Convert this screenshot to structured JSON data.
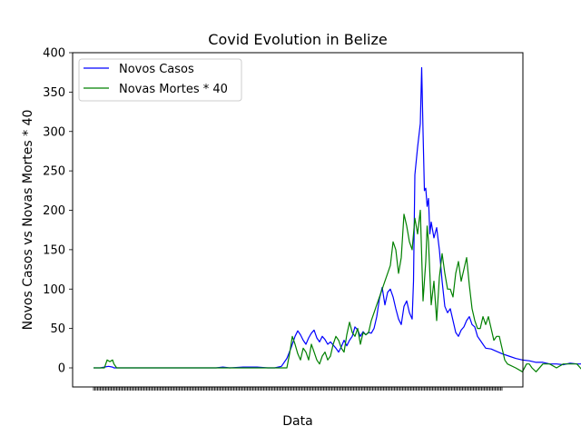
{
  "chart_data": {
    "type": "line",
    "title": "Covid Evolution in Belize",
    "xlabel": "Data",
    "ylabel": "Novos Casos vs Novas Mortes * 40",
    "ylim": [
      -25,
      400
    ],
    "yticks": [
      0,
      50,
      100,
      150,
      200,
      250,
      300,
      350,
      400
    ],
    "x_index_range": [
      0,
      300
    ],
    "grid": false,
    "legend_position": "upper left",
    "series": [
      {
        "name": "Novos Casos",
        "color": "#0000ff",
        "points": [
          [
            0,
            0
          ],
          [
            5,
            0
          ],
          [
            8,
            1
          ],
          [
            11,
            2
          ],
          [
            14,
            1
          ],
          [
            15,
            0
          ],
          [
            20,
            0
          ],
          [
            60,
            0
          ],
          [
            70,
            0
          ],
          [
            80,
            0
          ],
          [
            90,
            0
          ],
          [
            95,
            1
          ],
          [
            100,
            0
          ],
          [
            110,
            1
          ],
          [
            120,
            1
          ],
          [
            128,
            0
          ],
          [
            133,
            0
          ],
          [
            138,
            2
          ],
          [
            142,
            12
          ],
          [
            145,
            25
          ],
          [
            148,
            40
          ],
          [
            150,
            47
          ],
          [
            152,
            42
          ],
          [
            154,
            35
          ],
          [
            156,
            30
          ],
          [
            158,
            38
          ],
          [
            160,
            44
          ],
          [
            162,
            48
          ],
          [
            164,
            38
          ],
          [
            166,
            33
          ],
          [
            168,
            40
          ],
          [
            170,
            36
          ],
          [
            172,
            30
          ],
          [
            174,
            33
          ],
          [
            176,
            29
          ],
          [
            178,
            25
          ],
          [
            180,
            20
          ],
          [
            182,
            27
          ],
          [
            184,
            35
          ],
          [
            186,
            28
          ],
          [
            188,
            35
          ],
          [
            190,
            40
          ],
          [
            192,
            52
          ],
          [
            194,
            48
          ],
          [
            196,
            40
          ],
          [
            198,
            46
          ],
          [
            200,
            42
          ],
          [
            202,
            45
          ],
          [
            204,
            44
          ],
          [
            206,
            50
          ],
          [
            208,
            65
          ],
          [
            210,
            88
          ],
          [
            212,
            102
          ],
          [
            214,
            80
          ],
          [
            216,
            96
          ],
          [
            218,
            100
          ],
          [
            220,
            90
          ],
          [
            222,
            75
          ],
          [
            224,
            62
          ],
          [
            226,
            55
          ],
          [
            228,
            78
          ],
          [
            230,
            85
          ],
          [
            232,
            70
          ],
          [
            234,
            62
          ],
          [
            235,
            110
          ],
          [
            236,
            245
          ],
          [
            238,
            280
          ],
          [
            240,
            310
          ],
          [
            241,
            381
          ],
          [
            242,
            300
          ],
          [
            243,
            225
          ],
          [
            244,
            228
          ],
          [
            245,
            205
          ],
          [
            246,
            215
          ],
          [
            247,
            170
          ],
          [
            248,
            185
          ],
          [
            250,
            165
          ],
          [
            252,
            178
          ],
          [
            254,
            150
          ],
          [
            256,
            110
          ],
          [
            258,
            78
          ],
          [
            260,
            70
          ],
          [
            262,
            75
          ],
          [
            264,
            60
          ],
          [
            266,
            45
          ],
          [
            268,
            40
          ],
          [
            270,
            48
          ],
          [
            272,
            52
          ],
          [
            274,
            60
          ],
          [
            276,
            65
          ],
          [
            278,
            55
          ],
          [
            280,
            52
          ],
          [
            282,
            40
          ],
          [
            284,
            35
          ],
          [
            286,
            30
          ],
          [
            288,
            25
          ],
          [
            292,
            24
          ],
          [
            296,
            21
          ],
          [
            300,
            18
          ],
          [
            305,
            15
          ],
          [
            310,
            12
          ],
          [
            315,
            10
          ],
          [
            320,
            9
          ],
          [
            325,
            7
          ],
          [
            330,
            7
          ],
          [
            335,
            5
          ],
          [
            340,
            5
          ],
          [
            345,
            4
          ],
          [
            350,
            6
          ],
          [
            355,
            5
          ],
          [
            360,
            5
          ],
          [
            365,
            7
          ],
          [
            370,
            5
          ],
          [
            375,
            4
          ],
          [
            380,
            6
          ],
          [
            385,
            7
          ]
        ]
      },
      {
        "name": "Novas Mortes * 40",
        "color": "#008000",
        "points": [
          [
            0,
            0
          ],
          [
            8,
            0
          ],
          [
            10,
            10
          ],
          [
            12,
            8
          ],
          [
            14,
            10
          ],
          [
            15,
            5
          ],
          [
            17,
            0
          ],
          [
            20,
            0
          ],
          [
            60,
            0
          ],
          [
            120,
            0
          ],
          [
            130,
            0
          ],
          [
            138,
            0
          ],
          [
            140,
            0
          ],
          [
            142,
            0
          ],
          [
            144,
            18
          ],
          [
            146,
            40
          ],
          [
            148,
            30
          ],
          [
            150,
            18
          ],
          [
            152,
            10
          ],
          [
            154,
            25
          ],
          [
            156,
            20
          ],
          [
            158,
            10
          ],
          [
            160,
            30
          ],
          [
            162,
            20
          ],
          [
            164,
            10
          ],
          [
            166,
            5
          ],
          [
            168,
            15
          ],
          [
            170,
            20
          ],
          [
            172,
            10
          ],
          [
            174,
            15
          ],
          [
            176,
            30
          ],
          [
            178,
            40
          ],
          [
            180,
            35
          ],
          [
            182,
            25
          ],
          [
            184,
            20
          ],
          [
            186,
            42
          ],
          [
            188,
            58
          ],
          [
            190,
            45
          ],
          [
            192,
            40
          ],
          [
            194,
            50
          ],
          [
            196,
            30
          ],
          [
            198,
            45
          ],
          [
            200,
            42
          ],
          [
            202,
            45
          ],
          [
            204,
            60
          ],
          [
            206,
            70
          ],
          [
            208,
            80
          ],
          [
            210,
            90
          ],
          [
            212,
            100
          ],
          [
            214,
            110
          ],
          [
            216,
            120
          ],
          [
            218,
            130
          ],
          [
            220,
            160
          ],
          [
            222,
            150
          ],
          [
            224,
            120
          ],
          [
            226,
            140
          ],
          [
            228,
            195
          ],
          [
            230,
            180
          ],
          [
            232,
            160
          ],
          [
            234,
            150
          ],
          [
            236,
            190
          ],
          [
            238,
            170
          ],
          [
            240,
            200
          ],
          [
            242,
            85
          ],
          [
            244,
            135
          ],
          [
            245,
            180
          ],
          [
            246,
            160
          ],
          [
            248,
            80
          ],
          [
            250,
            110
          ],
          [
            252,
            60
          ],
          [
            254,
            115
          ],
          [
            256,
            145
          ],
          [
            258,
            120
          ],
          [
            260,
            100
          ],
          [
            262,
            100
          ],
          [
            264,
            90
          ],
          [
            266,
            120
          ],
          [
            268,
            135
          ],
          [
            270,
            110
          ],
          [
            272,
            125
          ],
          [
            274,
            140
          ],
          [
            276,
            105
          ],
          [
            278,
            75
          ],
          [
            280,
            60
          ],
          [
            282,
            50
          ],
          [
            284,
            50
          ],
          [
            286,
            65
          ],
          [
            288,
            55
          ],
          [
            290,
            65
          ],
          [
            292,
            50
          ],
          [
            294,
            35
          ],
          [
            296,
            40
          ],
          [
            298,
            40
          ],
          [
            300,
            25
          ],
          [
            302,
            10
          ],
          [
            304,
            5
          ],
          [
            310,
            0
          ],
          [
            315,
            -5
          ],
          [
            318,
            5
          ],
          [
            320,
            5
          ],
          [
            322,
            0
          ],
          [
            325,
            -5
          ],
          [
            330,
            5
          ],
          [
            335,
            5
          ],
          [
            340,
            0
          ],
          [
            345,
            5
          ],
          [
            350,
            5
          ],
          [
            355,
            5
          ],
          [
            360,
            -5
          ],
          [
            362,
            5
          ],
          [
            365,
            5
          ],
          [
            370,
            5
          ],
          [
            375,
            0
          ],
          [
            380,
            0
          ],
          [
            385,
            0
          ]
        ]
      }
    ]
  }
}
